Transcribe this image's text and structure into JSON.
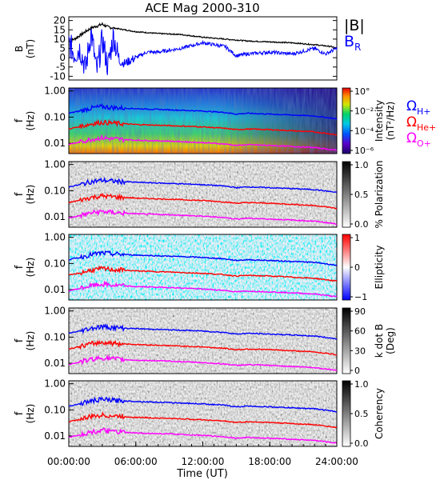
{
  "chart_data": [
    {
      "type": "line",
      "title": "ACE Mag 2000-310",
      "ylabel": "B",
      "yunit": "(nT)",
      "ylim": [
        -12,
        22
      ],
      "yticks": [
        -10,
        -5,
        0,
        5,
        10,
        15,
        20
      ],
      "xlim": [
        0,
        24
      ],
      "xlabel": "Time (UT)",
      "xtick_labels": [
        "00:00:00",
        "06:00:00",
        "12:00:00",
        "18:00:00",
        "24:00:00"
      ],
      "series": [
        {
          "name": "|B|",
          "color": "#000000",
          "x": [
            0,
            0.5,
            1,
            1.5,
            2,
            2.5,
            3,
            3.5,
            4,
            5,
            6,
            8,
            10,
            12,
            14,
            16,
            18,
            20,
            22,
            23.5,
            24
          ],
          "y": [
            9,
            10,
            12,
            14,
            16,
            17,
            18,
            16.5,
            16,
            15,
            14,
            13,
            12.5,
            11,
            10,
            9,
            8.5,
            8,
            7,
            6,
            5
          ]
        },
        {
          "name": "BR",
          "color": "#0000ff",
          "x": [
            0,
            0.5,
            1,
            1.5,
            2,
            2.5,
            3,
            3.5,
            4,
            4.5,
            5,
            6,
            7,
            8,
            10,
            12,
            14,
            15,
            16,
            18,
            20,
            22,
            23,
            24
          ],
          "y": [
            8,
            2,
            5,
            -6,
            14,
            -8,
            10,
            -5,
            12,
            -2,
            -3,
            0,
            3,
            3,
            5,
            8,
            6,
            1,
            2,
            3,
            2,
            5,
            2,
            5
          ]
        }
      ]
    },
    {
      "type": "heatmap",
      "ylabel": "f",
      "yunit": "(Hz)",
      "yscale": "log",
      "ylim": [
        0.004,
        1.3
      ],
      "ytick_labels": [
        "1.00",
        "0.10",
        "0.01"
      ],
      "colorbar_label": "Intensity",
      "colorbar_unit": "(nT²/Hz)",
      "colorbar_ticks": [
        "10°",
        "10⁻²",
        "10⁻⁴",
        "10⁻⁶"
      ],
      "legend": [
        "ΩH+",
        "ΩHe+",
        "ΩO+"
      ]
    },
    {
      "type": "heatmap",
      "ylabel": "f",
      "yunit": "(Hz)",
      "yscale": "log",
      "ytick_labels": [
        "1.00",
        "0.10",
        "0.01"
      ],
      "colorbar_label": "% Polarization",
      "colorbar_ticks": [
        "1.0",
        "0.5",
        "0.0"
      ]
    },
    {
      "type": "heatmap",
      "ylabel": "f",
      "yunit": "(Hz)",
      "yscale": "log",
      "ytick_labels": [
        "1.00",
        "0.10",
        "0.01"
      ],
      "colorbar_label": "Ellipticity",
      "colorbar_ticks": [
        "1",
        "0",
        "−1"
      ]
    },
    {
      "type": "heatmap",
      "ylabel": "f",
      "yunit": "(Hz)",
      "yscale": "log",
      "ytick_labels": [
        "1.00",
        "0.10",
        "0.01"
      ],
      "colorbar_label": "k dot B",
      "colorbar_unit": "(Deg)",
      "colorbar_ticks": [
        "90",
        "60",
        "30",
        "0"
      ]
    },
    {
      "type": "heatmap",
      "ylabel": "f",
      "yunit": "(Hz)",
      "yscale": "log",
      "ytick_labels": [
        "1.00",
        "0.10",
        "0.01"
      ],
      "colorbar_label": "Coherency",
      "colorbar_ticks": [
        "1.0",
        "0.5",
        "0.0"
      ]
    }
  ],
  "gyro_lines": {
    "x": [
      0,
      1,
      2,
      3,
      4,
      6,
      9,
      12,
      14,
      15,
      16,
      18,
      20,
      22,
      24
    ],
    "h_plus": [
      0.14,
      0.17,
      0.22,
      0.25,
      0.23,
      0.21,
      0.19,
      0.17,
      0.15,
      0.13,
      0.14,
      0.13,
      0.12,
      0.11,
      0.085
    ],
    "he_plus": [
      0.035,
      0.043,
      0.055,
      0.063,
      0.058,
      0.052,
      0.047,
      0.042,
      0.037,
      0.033,
      0.035,
      0.033,
      0.03,
      0.027,
      0.021
    ],
    "o_plus": [
      0.009,
      0.011,
      0.014,
      0.016,
      0.0145,
      0.013,
      0.012,
      0.0105,
      0.0093,
      0.0082,
      0.0088,
      0.0082,
      0.0075,
      0.0068,
      0.0053
    ],
    "colors": {
      "h_plus": "#0000ff",
      "he_plus": "#ff0000",
      "o_plus": "#ff00ff"
    }
  },
  "legend_labels": {
    "absB": "|B|",
    "br_main": "B",
    "br_sub": "R",
    "h_main": "Ω",
    "h_sub": "H+",
    "he_main": "Ω",
    "he_sub": "He+",
    "o_main": "Ω",
    "o_sub": "O+"
  }
}
